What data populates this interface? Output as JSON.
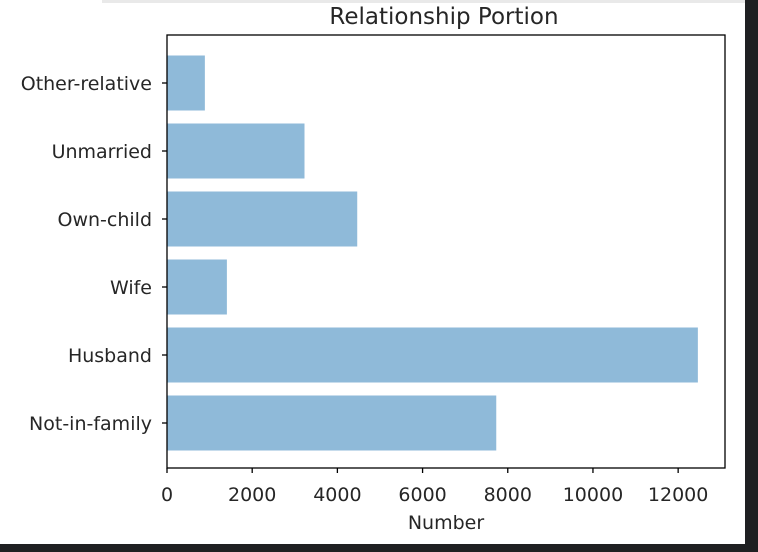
{
  "chart_data": {
    "type": "bar",
    "orientation": "horizontal",
    "title": "Relationship Portion",
    "xlabel": "Number",
    "ylabel": "",
    "categories": [
      "Not-in-family",
      "Husband",
      "Wife",
      "Own-child",
      "Unmarried",
      "Other-relative"
    ],
    "values": [
      7730,
      12463,
      1406,
      4466,
      3228,
      889
    ],
    "xlim": [
      0,
      13100
    ],
    "xticks": [
      0,
      2000,
      4000,
      6000,
      8000,
      10000,
      12000
    ],
    "xtick_labels": [
      "0",
      "2000",
      "4000",
      "6000",
      "8000",
      "10000",
      "12000"
    ],
    "grid": false,
    "bar_color": "#8fbad9"
  }
}
